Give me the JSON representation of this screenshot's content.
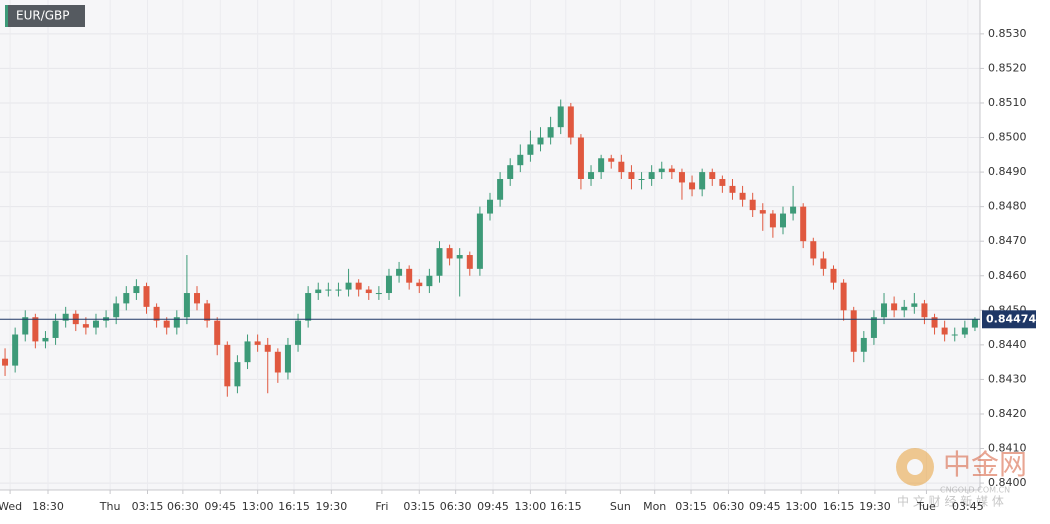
{
  "chart_data": {
    "type": "candlestick",
    "title": "EUR/GBP",
    "x": [
      0,
      1,
      2,
      3,
      4,
      5,
      6,
      7,
      8,
      9,
      10,
      11,
      12,
      13,
      14,
      15,
      16,
      17,
      18,
      19,
      20,
      21,
      22,
      23,
      24,
      25,
      26,
      27,
      28,
      29,
      30,
      31,
      32,
      33,
      34,
      35,
      36,
      37,
      38,
      39,
      40,
      41,
      42,
      43,
      44,
      45,
      46,
      47,
      48,
      49,
      50,
      51,
      52,
      53,
      54,
      55,
      56,
      57,
      58,
      59,
      60,
      61,
      62,
      63,
      64,
      65,
      66,
      67,
      68,
      69,
      70,
      71,
      72,
      73,
      74,
      75,
      76,
      77,
      78,
      79,
      80,
      81,
      82,
      83,
      84,
      85,
      86,
      87,
      88,
      89,
      90,
      91,
      92,
      93,
      94,
      95,
      96
    ],
    "open": [
      0.8436,
      0.8434,
      0.8443,
      0.8448,
      0.8441,
      0.8442,
      0.8447,
      0.8449,
      0.8446,
      0.8445,
      0.8447,
      0.8448,
      0.8452,
      0.8455,
      0.8457,
      0.8451,
      0.8447,
      0.8445,
      0.8448,
      0.8455,
      0.8452,
      0.8447,
      0.844,
      0.8428,
      0.8435,
      0.8441,
      0.844,
      0.8438,
      0.8432,
      0.844,
      0.8447,
      0.8455,
      0.8456,
      0.8456,
      0.8456,
      0.8458,
      0.8456,
      0.8455,
      0.8455,
      0.846,
      0.8462,
      0.8458,
      0.8457,
      0.846,
      0.8468,
      0.8465,
      0.8466,
      0.8462,
      0.8478,
      0.8482,
      0.8488,
      0.8492,
      0.8495,
      0.8498,
      0.85,
      0.8503,
      0.8509,
      0.85,
      0.8488,
      0.849,
      0.8494,
      0.8493,
      0.849,
      0.8488,
      0.8488,
      0.849,
      0.8491,
      0.849,
      0.8487,
      0.8485,
      0.849,
      0.8488,
      0.8486,
      0.8484,
      0.8482,
      0.8479,
      0.8478,
      0.8474,
      0.8478,
      0.848,
      0.847,
      0.8465,
      0.8462,
      0.8458,
      0.845,
      0.8438,
      0.8442,
      0.8448,
      0.8452,
      0.845,
      0.8451,
      0.8452,
      0.8448,
      0.8445,
      0.8443,
      0.8443,
      0.8445
    ],
    "high": [
      0.8439,
      0.8445,
      0.845,
      0.8449,
      0.8444,
      0.8449,
      0.8451,
      0.845,
      0.8448,
      0.8449,
      0.845,
      0.8454,
      0.8457,
      0.8459,
      0.8458,
      0.8452,
      0.8448,
      0.845,
      0.8466,
      0.8457,
      0.8453,
      0.8448,
      0.8441,
      0.8437,
      0.8443,
      0.8443,
      0.8442,
      0.8439,
      0.8442,
      0.8449,
      0.8457,
      0.8458,
      0.8458,
      0.8458,
      0.8462,
      0.8459,
      0.8457,
      0.8457,
      0.8462,
      0.8464,
      0.8463,
      0.8459,
      0.8462,
      0.847,
      0.8469,
      0.8468,
      0.8467,
      0.848,
      0.8484,
      0.849,
      0.8494,
      0.8498,
      0.8502,
      0.8503,
      0.8506,
      0.8511,
      0.851,
      0.8501,
      0.8492,
      0.8495,
      0.8495,
      0.8495,
      0.8492,
      0.849,
      0.8492,
      0.8493,
      0.8492,
      0.8491,
      0.8489,
      0.8491,
      0.8491,
      0.8489,
      0.8488,
      0.8486,
      0.8484,
      0.8481,
      0.8479,
      0.848,
      0.8486,
      0.8481,
      0.8471,
      0.8467,
      0.8463,
      0.8459,
      0.8451,
      0.8444,
      0.845,
      0.8455,
      0.8454,
      0.8453,
      0.8455,
      0.8453,
      0.8449,
      0.8447,
      0.8445,
      0.8447,
      0.8448
    ],
    "low": [
      0.8431,
      0.8432,
      0.8441,
      0.8439,
      0.8439,
      0.844,
      0.8445,
      0.8444,
      0.8443,
      0.8443,
      0.8445,
      0.8446,
      0.845,
      0.8453,
      0.8449,
      0.8445,
      0.8443,
      0.8443,
      0.8446,
      0.845,
      0.8445,
      0.8437,
      0.8425,
      0.8426,
      0.8433,
      0.8438,
      0.8426,
      0.8429,
      0.843,
      0.8438,
      0.8445,
      0.8453,
      0.8454,
      0.8454,
      0.8454,
      0.8454,
      0.8453,
      0.8453,
      0.8453,
      0.8458,
      0.8456,
      0.8455,
      0.8455,
      0.8458,
      0.8463,
      0.8454,
      0.846,
      0.846,
      0.8476,
      0.848,
      0.8486,
      0.849,
      0.8493,
      0.8496,
      0.8498,
      0.8501,
      0.8498,
      0.8485,
      0.8486,
      0.8488,
      0.8491,
      0.8488,
      0.8485,
      0.8485,
      0.8486,
      0.8488,
      0.8488,
      0.8482,
      0.8483,
      0.8483,
      0.8486,
      0.8484,
      0.8482,
      0.848,
      0.8477,
      0.8473,
      0.8471,
      0.8472,
      0.8476,
      0.8468,
      0.8463,
      0.846,
      0.8456,
      0.8447,
      0.8435,
      0.8435,
      0.844,
      0.8446,
      0.8448,
      0.8448,
      0.8449,
      0.8446,
      0.8443,
      0.8441,
      0.8441,
      0.8442,
      0.8444
    ],
    "close": [
      0.8434,
      0.8443,
      0.8448,
      0.8441,
      0.8442,
      0.8447,
      0.8449,
      0.8446,
      0.8445,
      0.8447,
      0.8448,
      0.8452,
      0.8455,
      0.8457,
      0.8451,
      0.8447,
      0.8445,
      0.8448,
      0.8455,
      0.8452,
      0.8447,
      0.844,
      0.8428,
      0.8435,
      0.8441,
      0.844,
      0.8438,
      0.8432,
      0.844,
      0.8447,
      0.8455,
      0.8456,
      0.8456,
      0.8456,
      0.8458,
      0.8456,
      0.8455,
      0.8455,
      0.846,
      0.8462,
      0.8458,
      0.8457,
      0.846,
      0.8468,
      0.8465,
      0.8466,
      0.8462,
      0.8478,
      0.8482,
      0.8488,
      0.8492,
      0.8495,
      0.8498,
      0.85,
      0.8503,
      0.8509,
      0.85,
      0.8488,
      0.849,
      0.8494,
      0.8493,
      0.849,
      0.8488,
      0.8488,
      0.849,
      0.8491,
      0.849,
      0.8487,
      0.8485,
      0.849,
      0.8488,
      0.8486,
      0.8484,
      0.8482,
      0.8479,
      0.8478,
      0.8474,
      0.8478,
      0.848,
      0.847,
      0.8465,
      0.8462,
      0.8458,
      0.845,
      0.8438,
      0.8442,
      0.8448,
      0.8452,
      0.845,
      0.8451,
      0.8452,
      0.8448,
      0.8445,
      0.8443,
      0.8443,
      0.8445,
      0.84474
    ],
    "up_color": "#3d9a78",
    "down_color": "#e0583f",
    "last_price": 0.84474,
    "last_price_color": "#1e3766",
    "xlim": [
      -0.5,
      96.5
    ],
    "xticks": [
      {
        "value": 0.5,
        "label": "Wed"
      },
      {
        "value": 4.25,
        "label": "18:30"
      },
      {
        "value": 10.4,
        "label": "Thu"
      },
      {
        "value": 14.1,
        "label": "03:15"
      },
      {
        "value": 17.6,
        "label": "06:30"
      },
      {
        "value": 21.3,
        "label": "09:45"
      },
      {
        "value": 25,
        "label": "13:00"
      },
      {
        "value": 28.6,
        "label": "16:15"
      },
      {
        "value": 32.3,
        "label": "19:30"
      },
      {
        "value": 37.3,
        "label": "Fri"
      },
      {
        "value": 41,
        "label": "03:15"
      },
      {
        "value": 44.6,
        "label": "06:30"
      },
      {
        "value": 48.3,
        "label": "09:45"
      },
      {
        "value": 52,
        "label": "13:00"
      },
      {
        "value": 55.5,
        "label": "16:15"
      },
      {
        "value": 60.9,
        "label": "Sun"
      },
      {
        "value": 64.3,
        "label": "Mon"
      },
      {
        "value": 67.9,
        "label": "03:15"
      },
      {
        "value": 71.6,
        "label": "06:30"
      },
      {
        "value": 75.2,
        "label": "09:45"
      },
      {
        "value": 78.8,
        "label": "13:00"
      },
      {
        "value": 82.5,
        "label": "16:15"
      },
      {
        "value": 86.1,
        "label": "19:30"
      },
      {
        "value": 91.2,
        "label": "Tue"
      },
      {
        "value": 95.3,
        "label": "03:45"
      }
    ],
    "ylim": [
      0.8398,
      0.85398
    ],
    "yticks": [
      {
        "value": 0.84,
        "label": "0.8400"
      },
      {
        "value": 0.841,
        "label": "0.8410"
      },
      {
        "value": 0.842,
        "label": "0.8420"
      },
      {
        "value": 0.843,
        "label": "0.8430"
      },
      {
        "value": 0.844,
        "label": "0.8440"
      },
      {
        "value": 0.845,
        "label": "0.8450"
      },
      {
        "value": 0.846,
        "label": "0.8460"
      },
      {
        "value": 0.847,
        "label": "0.8470"
      },
      {
        "value": 0.848,
        "label": "0.8480"
      },
      {
        "value": 0.849,
        "label": "0.8490"
      },
      {
        "value": 0.85,
        "label": "0.8500"
      },
      {
        "value": 0.851,
        "label": "0.8510"
      },
      {
        "value": 0.852,
        "label": "0.8520"
      },
      {
        "value": 0.853,
        "label": "0.8530"
      }
    ],
    "grid": true,
    "watermark": {
      "name": "中金网",
      "site": "CNGOLD.COM.CN",
      "slogan": "中 文 财 经 新 媒 体"
    }
  }
}
